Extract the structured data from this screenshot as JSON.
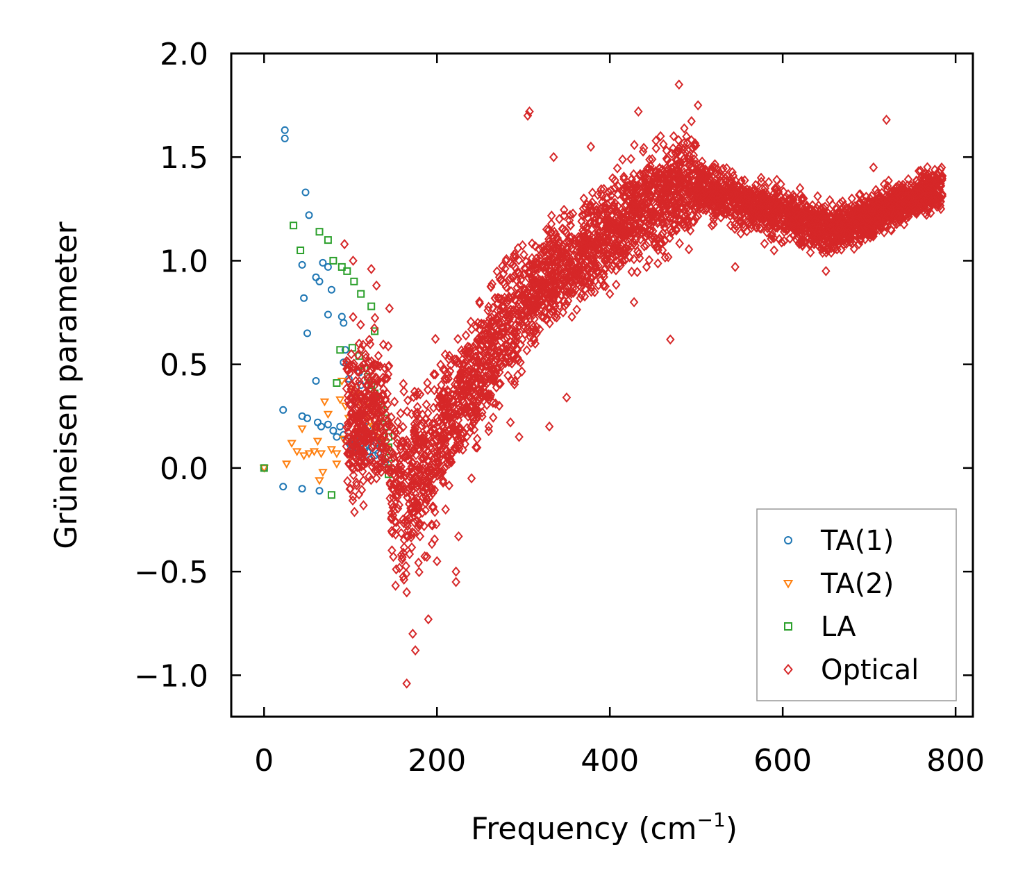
{
  "chart_data": {
    "type": "scatter",
    "title": "",
    "xlabel": "Frequency (cm",
    "xlabel_sup": "−1",
    "xlabel_suffix": ")",
    "ylabel": "Grüneisen parameter",
    "xlim": [
      -38,
      820
    ],
    "ylim": [
      -1.2,
      2.0
    ],
    "xticks": [
      0,
      200,
      400,
      600,
      800
    ],
    "xtick_labels": [
      "0",
      "200",
      "400",
      "600",
      "800"
    ],
    "yticks": [
      -1.0,
      -0.5,
      0.0,
      0.5,
      1.0,
      1.5,
      2.0
    ],
    "ytick_labels": [
      "−1.0",
      "−0.5",
      "0.0",
      "0.5",
      "1.0",
      "1.5",
      "2.0"
    ],
    "grid": false,
    "legend": "lower-right",
    "series": [
      {
        "name": "TA(1)",
        "color": "#1f77b4",
        "marker": "circle",
        "points": [
          [
            0,
            0
          ],
          [
            24,
            1.63
          ],
          [
            24,
            1.59
          ],
          [
            48,
            1.33
          ],
          [
            52,
            1.22
          ],
          [
            44,
            0.98
          ],
          [
            46,
            0.82
          ],
          [
            50,
            0.65
          ],
          [
            60,
            0.92
          ],
          [
            64,
            0.9
          ],
          [
            68,
            0.99
          ],
          [
            74,
            0.97
          ],
          [
            78,
            0.86
          ],
          [
            74,
            0.74
          ],
          [
            90,
            0.73
          ],
          [
            92,
            0.7
          ],
          [
            94,
            0.57
          ],
          [
            92,
            0.51
          ],
          [
            98,
            0.43
          ],
          [
            110,
            0.46
          ],
          [
            112,
            0.4
          ],
          [
            60,
            0.42
          ],
          [
            22,
            0.28
          ],
          [
            44,
            0.25
          ],
          [
            50,
            0.24
          ],
          [
            62,
            0.22
          ],
          [
            66,
            0.2
          ],
          [
            74,
            0.21
          ],
          [
            80,
            0.18
          ],
          [
            84,
            0.15
          ],
          [
            88,
            0.2
          ],
          [
            92,
            0.16
          ],
          [
            96,
            0.13
          ],
          [
            100,
            0.11
          ],
          [
            104,
            0.14
          ],
          [
            108,
            0.1
          ],
          [
            112,
            0.12
          ],
          [
            116,
            0.09
          ],
          [
            120,
            0.08
          ],
          [
            124,
            0.1
          ],
          [
            128,
            0.06
          ],
          [
            132,
            0.07
          ],
          [
            136,
            0.05
          ],
          [
            140,
            0.03
          ],
          [
            116,
            0.16
          ],
          [
            120,
            0.2
          ],
          [
            126,
            0.15
          ],
          [
            130,
            0.12
          ],
          [
            134,
            0.1
          ],
          [
            102,
            0.08
          ],
          [
            110,
            0.06
          ],
          [
            122,
            0.04
          ],
          [
            22,
            -0.09
          ],
          [
            44,
            -0.1
          ],
          [
            64,
            -0.11
          ]
        ]
      },
      {
        "name": "TA(2)",
        "color": "#ff7f0e",
        "marker": "triangle-down",
        "points": [
          [
            0,
            0
          ],
          [
            26,
            0.02
          ],
          [
            32,
            0.12
          ],
          [
            38,
            0.08
          ],
          [
            44,
            0.19
          ],
          [
            46,
            0.06
          ],
          [
            52,
            0.07
          ],
          [
            58,
            0.08
          ],
          [
            62,
            0.13
          ],
          [
            66,
            0.07
          ],
          [
            70,
            0.32
          ],
          [
            74,
            0.26
          ],
          [
            78,
            0.09
          ],
          [
            84,
            0.07
          ],
          [
            88,
            0.33
          ],
          [
            90,
            0.42
          ],
          [
            94,
            0.3
          ],
          [
            98,
            0.24
          ],
          [
            102,
            0.38
          ],
          [
            106,
            0.36
          ],
          [
            110,
            0.32
          ],
          [
            114,
            0.28
          ],
          [
            118,
            0.25
          ],
          [
            122,
            0.22
          ],
          [
            126,
            0.2
          ],
          [
            130,
            0.18
          ],
          [
            134,
            0.15
          ],
          [
            138,
            0.13
          ],
          [
            142,
            0.1
          ],
          [
            92,
            0.14
          ],
          [
            100,
            0.05
          ],
          [
            108,
            0.18
          ],
          [
            116,
            0.12
          ],
          [
            124,
            0.3
          ],
          [
            128,
            0.26
          ],
          [
            64,
            -0.06
          ],
          [
            68,
            -0.02
          ],
          [
            84,
            0.02
          ]
        ]
      },
      {
        "name": "LA",
        "color": "#2ca02c",
        "marker": "square",
        "points": [
          [
            0,
            0
          ],
          [
            34,
            1.17
          ],
          [
            42,
            1.05
          ],
          [
            64,
            1.14
          ],
          [
            74,
            1.1
          ],
          [
            80,
            1.0
          ],
          [
            90,
            0.97
          ],
          [
            96,
            0.95
          ],
          [
            104,
            0.9
          ],
          [
            112,
            0.84
          ],
          [
            124,
            0.78
          ],
          [
            128,
            0.66
          ],
          [
            88,
            0.57
          ],
          [
            102,
            0.58
          ],
          [
            110,
            0.54
          ],
          [
            116,
            0.48
          ],
          [
            120,
            0.44
          ],
          [
            124,
            0.4
          ],
          [
            128,
            0.36
          ],
          [
            132,
            0.32
          ],
          [
            136,
            0.28
          ],
          [
            140,
            0.24
          ],
          [
            142,
            0.2
          ],
          [
            144,
            0.15
          ],
          [
            144,
            0.1
          ],
          [
            144,
            0.05
          ],
          [
            144,
            0.0
          ],
          [
            144,
            -0.03
          ],
          [
            78,
            -0.13
          ],
          [
            84,
            0.41
          ],
          [
            130,
            0.2
          ],
          [
            136,
            0.12
          ]
        ]
      },
      {
        "name": "Optical",
        "color": "#d62728",
        "marker": "diamond",
        "generate": true,
        "points": [
          [
            93,
            1.08
          ],
          [
            103,
            1.0
          ],
          [
            124,
            0.96
          ],
          [
            145,
            0.77
          ],
          [
            130,
            0.88
          ],
          [
            110,
            0.6
          ],
          [
            120,
            0.45
          ],
          [
            125,
            0.3
          ],
          [
            130,
            0.2
          ],
          [
            138,
            0.1
          ],
          [
            150,
            0.05
          ],
          [
            100,
            -0.1
          ],
          [
            115,
            -0.18
          ],
          [
            130,
            -0.05
          ],
          [
            160,
            -0.43
          ],
          [
            165,
            -0.6
          ],
          [
            172,
            -0.8
          ],
          [
            165,
            -1.04
          ],
          [
            175,
            -0.88
          ],
          [
            190,
            -0.73
          ],
          [
            200,
            -0.45
          ],
          [
            210,
            -0.2
          ],
          [
            222,
            -0.5
          ],
          [
            222,
            -0.55
          ],
          [
            225,
            -0.33
          ],
          [
            240,
            -0.05
          ],
          [
            245,
            0.1
          ],
          [
            260,
            0.2
          ],
          [
            272,
            0.3
          ],
          [
            285,
            0.22
          ],
          [
            295,
            0.15
          ],
          [
            330,
            0.2
          ],
          [
            350,
            0.34
          ],
          [
            305,
            1.7
          ],
          [
            307,
            1.72
          ],
          [
            335,
            1.5
          ],
          [
            378,
            1.55
          ],
          [
            433,
            1.72
          ],
          [
            480,
            1.85
          ],
          [
            502,
            1.75
          ],
          [
            470,
            0.62
          ],
          [
            520,
            1.2
          ],
          [
            575,
            1.4
          ],
          [
            620,
            1.35
          ],
          [
            650,
            0.95
          ],
          [
            680,
            1.3
          ],
          [
            705,
            1.45
          ],
          [
            720,
            1.68
          ],
          [
            760,
            1.4
          ],
          [
            783,
            1.25
          ],
          [
            545,
            0.97
          ],
          [
            590,
            1.05
          ],
          [
            725,
            1.15
          ],
          [
            400,
            0.84
          ],
          [
            428,
            0.8
          ]
        ]
      }
    ]
  }
}
